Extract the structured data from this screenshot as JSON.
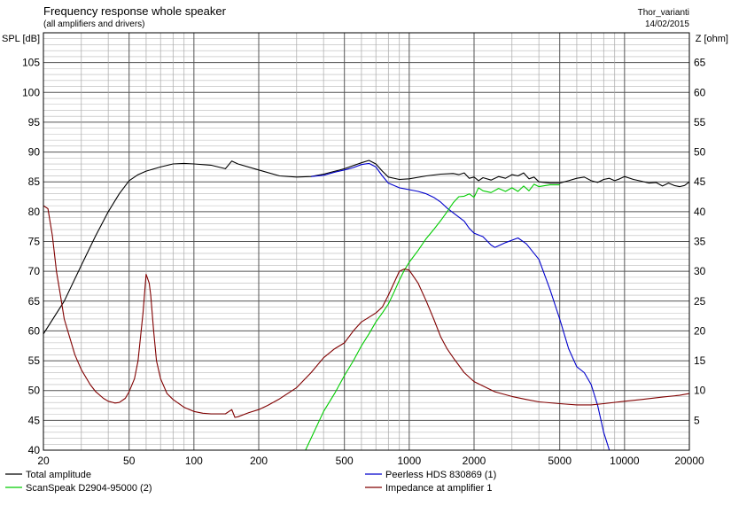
{
  "chart_data": {
    "type": "line",
    "title": "Frequency response whole speaker",
    "subtitle": "(all amplifiers and drivers)",
    "project": "Thor_varianti",
    "date": "14/02/2015",
    "ylabel": "SPL [dB]",
    "y2label": "Z [ohm]",
    "x_scale": "log",
    "xlim": [
      20,
      20000
    ],
    "ylim": [
      40,
      110
    ],
    "y2lim": [
      0,
      70
    ],
    "grid": true,
    "x_ticks": [
      "20",
      "50",
      "100",
      "200",
      "500",
      "1000",
      "2000",
      "5000",
      "10000",
      "20000"
    ],
    "y_ticks": [
      "105",
      "100",
      "95",
      "90",
      "85",
      "80",
      "75",
      "70",
      "65",
      "60",
      "55",
      "50",
      "45",
      "40"
    ],
    "y2_ticks": [
      "65",
      "60",
      "55",
      "50",
      "45",
      "40",
      "35",
      "30",
      "25",
      "20",
      "15",
      "10",
      "5"
    ],
    "legend_position": "bottom",
    "series": [
      {
        "name": "Total amplitude",
        "axis": "left",
        "color": "#000000",
        "points": [
          [
            20,
            59.5
          ],
          [
            25,
            65
          ],
          [
            30,
            71
          ],
          [
            35,
            76
          ],
          [
            40,
            80
          ],
          [
            45,
            83
          ],
          [
            50,
            85.2
          ],
          [
            55,
            86.2
          ],
          [
            60,
            86.8
          ],
          [
            70,
            87.5
          ],
          [
            80,
            88
          ],
          [
            90,
            88.1
          ],
          [
            100,
            88
          ],
          [
            120,
            87.8
          ],
          [
            140,
            87.2
          ],
          [
            150,
            88.5
          ],
          [
            160,
            88
          ],
          [
            200,
            87
          ],
          [
            250,
            86
          ],
          [
            300,
            85.8
          ],
          [
            350,
            85.9
          ],
          [
            400,
            86.3
          ],
          [
            500,
            87.2
          ],
          [
            600,
            88.2
          ],
          [
            650,
            88.6
          ],
          [
            700,
            88
          ],
          [
            750,
            86.8
          ],
          [
            800,
            85.8
          ],
          [
            900,
            85.4
          ],
          [
            1000,
            85.5
          ],
          [
            1200,
            86
          ],
          [
            1400,
            86.3
          ],
          [
            1600,
            86.4
          ],
          [
            1700,
            86.2
          ],
          [
            1800,
            86.5
          ],
          [
            1900,
            85.6
          ],
          [
            2000,
            85.8
          ],
          [
            2100,
            85.2
          ],
          [
            2200,
            85.7
          ],
          [
            2400,
            85.3
          ],
          [
            2600,
            85.9
          ],
          [
            2800,
            85.6
          ],
          [
            3000,
            86.2
          ],
          [
            3200,
            86
          ],
          [
            3400,
            86.5
          ],
          [
            3600,
            85.5
          ],
          [
            3800,
            85.8
          ],
          [
            4000,
            85
          ],
          [
            4500,
            84.8
          ],
          [
            5000,
            84.8
          ],
          [
            5500,
            85.2
          ],
          [
            6000,
            85.6
          ],
          [
            6500,
            85.8
          ],
          [
            7000,
            85.2
          ],
          [
            7500,
            84.9
          ],
          [
            8000,
            85.4
          ],
          [
            8500,
            85.6
          ],
          [
            9000,
            85.2
          ],
          [
            9500,
            85.5
          ],
          [
            10000,
            85.9
          ],
          [
            11000,
            85.4
          ],
          [
            12000,
            85.1
          ],
          [
            13000,
            84.8
          ],
          [
            14000,
            84.9
          ],
          [
            15000,
            84.3
          ],
          [
            16000,
            84.8
          ],
          [
            17000,
            84.4
          ],
          [
            18000,
            84.2
          ],
          [
            19000,
            84.4
          ],
          [
            20000,
            85
          ]
        ]
      },
      {
        "name": "Peerless HDS 830869 (1)",
        "axis": "left",
        "color": "#0000cc",
        "points": [
          [
            350,
            85.9
          ],
          [
            400,
            86.1
          ],
          [
            450,
            86.6
          ],
          [
            500,
            87
          ],
          [
            550,
            87.4
          ],
          [
            600,
            87.9
          ],
          [
            650,
            88.1
          ],
          [
            700,
            87.5
          ],
          [
            750,
            86
          ],
          [
            800,
            84.8
          ],
          [
            900,
            84
          ],
          [
            1000,
            83.7
          ],
          [
            1100,
            83.4
          ],
          [
            1200,
            83
          ],
          [
            1300,
            82.4
          ],
          [
            1400,
            81.6
          ],
          [
            1500,
            80.6
          ],
          [
            1600,
            79.8
          ],
          [
            1800,
            78.4
          ],
          [
            1900,
            77.2
          ],
          [
            2000,
            76.4
          ],
          [
            2200,
            75.8
          ],
          [
            2400,
            74.4
          ],
          [
            2500,
            74
          ],
          [
            2800,
            74.8
          ],
          [
            3200,
            75.6
          ],
          [
            3500,
            74.6
          ],
          [
            4000,
            72
          ],
          [
            4500,
            67
          ],
          [
            5000,
            62
          ],
          [
            5500,
            57
          ],
          [
            6000,
            54
          ],
          [
            6500,
            53
          ],
          [
            7000,
            51
          ],
          [
            7500,
            47.5
          ],
          [
            8000,
            43
          ],
          [
            8500,
            40
          ]
        ]
      },
      {
        "name": "ScanSpeak D2904-95000 (2)",
        "axis": "left",
        "color": "#00cc00",
        "points": [
          [
            330,
            40
          ],
          [
            350,
            42
          ],
          [
            400,
            46.5
          ],
          [
            450,
            49.5
          ],
          [
            500,
            52.5
          ],
          [
            550,
            55
          ],
          [
            600,
            57.5
          ],
          [
            650,
            59.5
          ],
          [
            700,
            61.5
          ],
          [
            750,
            63
          ],
          [
            800,
            64.5
          ],
          [
            850,
            66.5
          ],
          [
            900,
            68.5
          ],
          [
            950,
            70.2
          ],
          [
            1000,
            71.5
          ],
          [
            1100,
            73.5
          ],
          [
            1200,
            75.5
          ],
          [
            1300,
            77
          ],
          [
            1400,
            78.5
          ],
          [
            1500,
            80
          ],
          [
            1600,
            81.5
          ],
          [
            1700,
            82.5
          ],
          [
            1800,
            82.6
          ],
          [
            1900,
            83
          ],
          [
            2000,
            82.4
          ],
          [
            2100,
            84
          ],
          [
            2200,
            83.5
          ],
          [
            2400,
            83.2
          ],
          [
            2600,
            83.9
          ],
          [
            2800,
            83.4
          ],
          [
            3000,
            84
          ],
          [
            3200,
            83.4
          ],
          [
            3400,
            84.3
          ],
          [
            3600,
            83.5
          ],
          [
            3800,
            84.6
          ],
          [
            4000,
            84.2
          ],
          [
            4500,
            84.5
          ],
          [
            5000,
            84.5
          ]
        ]
      },
      {
        "name": "Impedance at amplifier 1",
        "axis": "right",
        "color": "#800000",
        "points": [
          [
            20,
            41
          ],
          [
            21,
            40.5
          ],
          [
            22,
            36
          ],
          [
            23,
            30
          ],
          [
            24,
            26
          ],
          [
            25,
            22
          ],
          [
            28,
            16
          ],
          [
            30,
            13.5
          ],
          [
            33,
            11
          ],
          [
            35,
            9.8
          ],
          [
            38,
            8.7
          ],
          [
            40,
            8.2
          ],
          [
            43,
            7.9
          ],
          [
            45,
            8.0
          ],
          [
            48,
            8.7
          ],
          [
            50,
            9.8
          ],
          [
            53,
            12
          ],
          [
            55,
            15
          ],
          [
            58,
            23
          ],
          [
            60,
            29.5
          ],
          [
            62,
            28
          ],
          [
            63,
            26
          ],
          [
            65,
            20
          ],
          [
            67,
            15
          ],
          [
            70,
            12
          ],
          [
            75,
            9.5
          ],
          [
            80,
            8.5
          ],
          [
            90,
            7.2
          ],
          [
            100,
            6.5
          ],
          [
            110,
            6.2
          ],
          [
            120,
            6.1
          ],
          [
            140,
            6.1
          ],
          [
            150,
            6.8
          ],
          [
            155,
            5.5
          ],
          [
            160,
            5.6
          ],
          [
            180,
            6.3
          ],
          [
            200,
            6.8
          ],
          [
            220,
            7.5
          ],
          [
            250,
            8.6
          ],
          [
            300,
            10.5
          ],
          [
            350,
            13
          ],
          [
            400,
            15.5
          ],
          [
            450,
            17
          ],
          [
            500,
            18
          ],
          [
            550,
            20
          ],
          [
            600,
            21.5
          ],
          [
            700,
            23
          ],
          [
            750,
            24
          ],
          [
            800,
            26
          ],
          [
            900,
            30
          ],
          [
            950,
            30.4
          ],
          [
            1000,
            30.2
          ],
          [
            1100,
            28
          ],
          [
            1200,
            25
          ],
          [
            1300,
            22
          ],
          [
            1400,
            19
          ],
          [
            1500,
            17
          ],
          [
            1600,
            15.5
          ],
          [
            1800,
            13
          ],
          [
            2000,
            11.5
          ],
          [
            2500,
            9.8
          ],
          [
            3000,
            9
          ],
          [
            3500,
            8.5
          ],
          [
            4000,
            8.1
          ],
          [
            5000,
            7.8
          ],
          [
            6000,
            7.6
          ],
          [
            7000,
            7.6
          ],
          [
            8000,
            7.8
          ],
          [
            10000,
            8.2
          ],
          [
            12000,
            8.5
          ],
          [
            15000,
            8.9
          ],
          [
            18000,
            9.2
          ],
          [
            20000,
            9.5
          ]
        ]
      }
    ]
  }
}
